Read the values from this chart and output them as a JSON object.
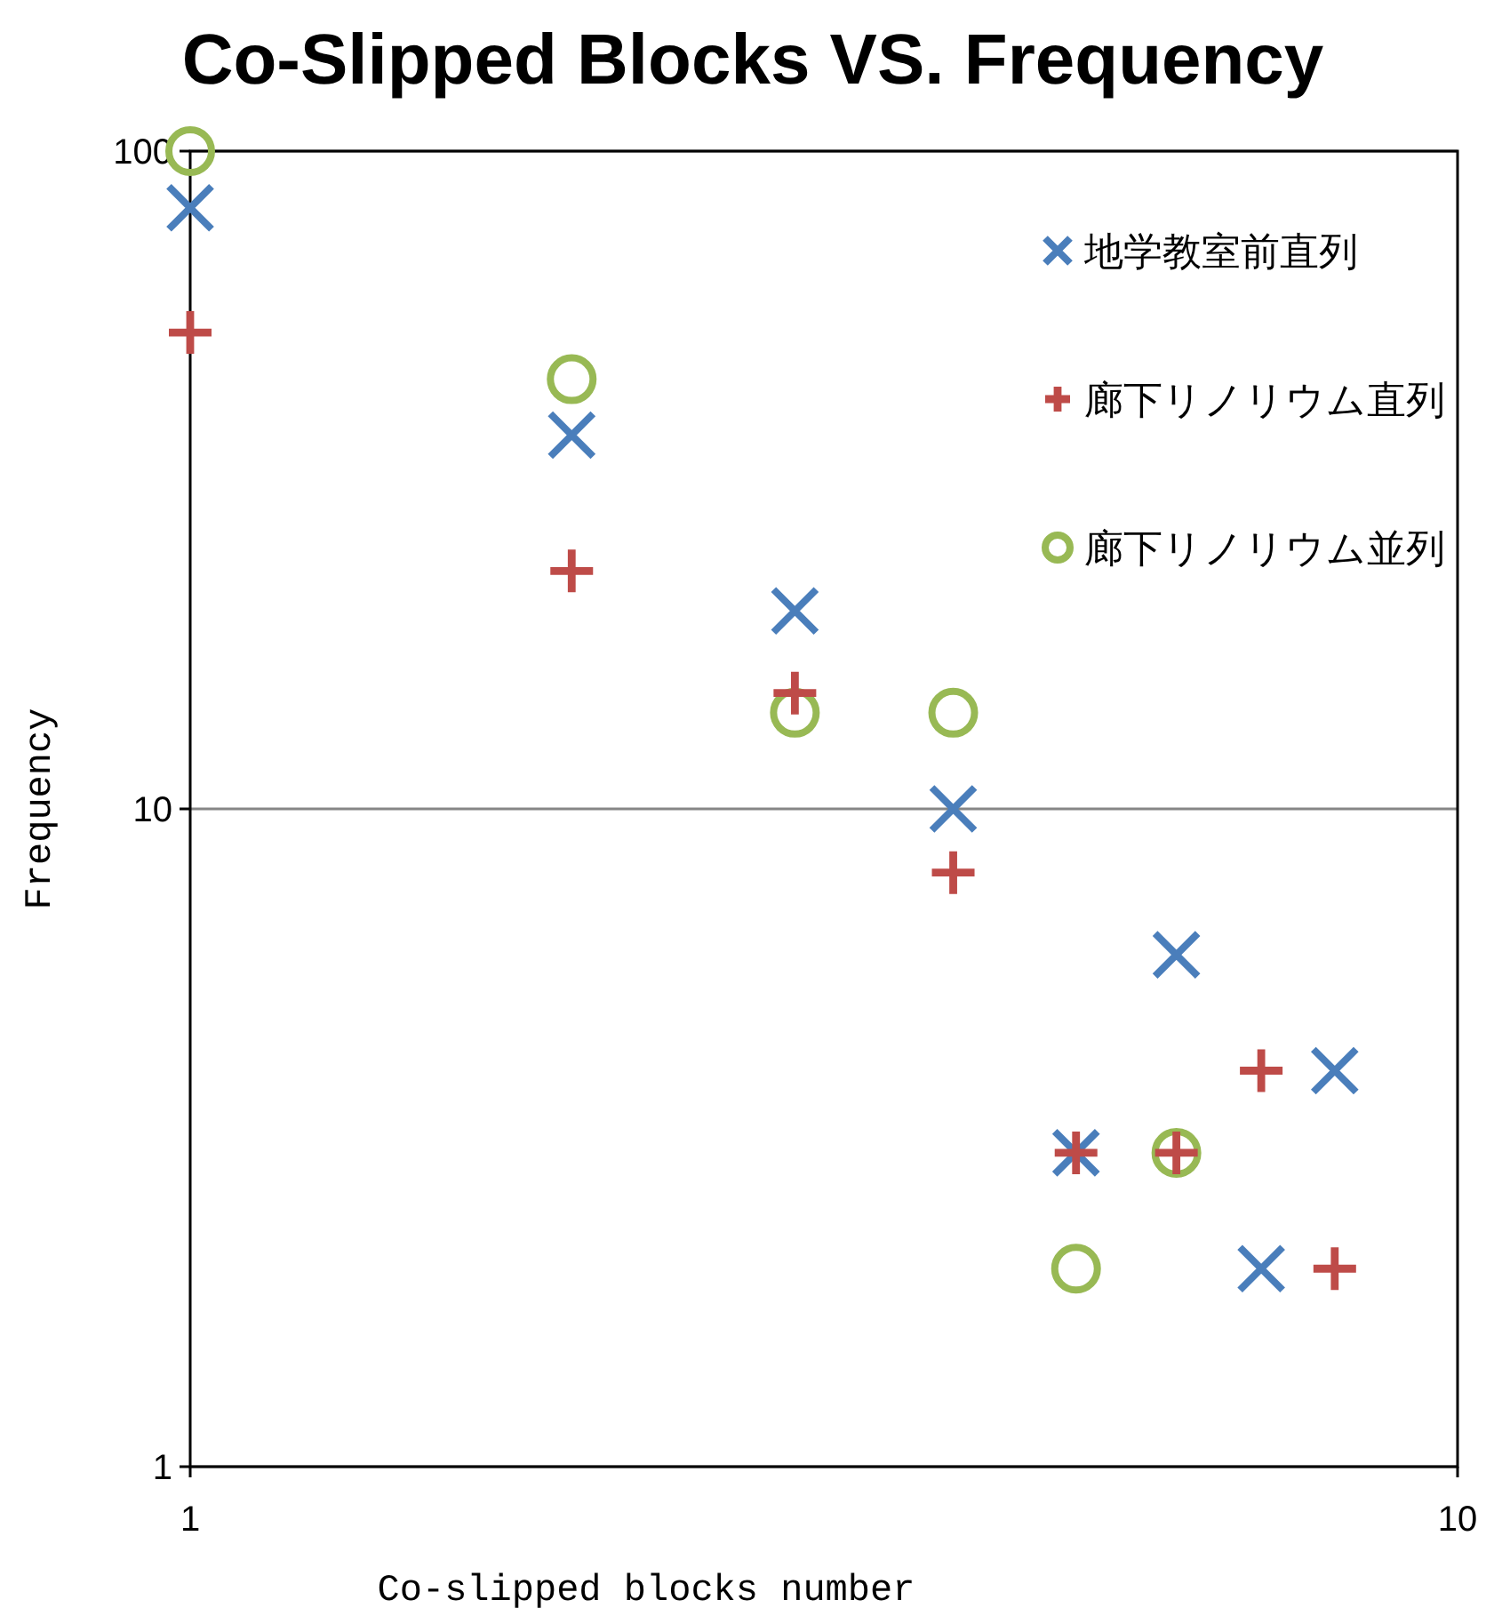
{
  "chart_data": {
    "type": "scatter",
    "title": "Co-Slipped Blocks VS. Frequency",
    "xlabel": "Co-slipped blocks number",
    "ylabel": "Frequency",
    "log": "xy",
    "xlim": [
      1,
      10
    ],
    "ylim": [
      1,
      100
    ],
    "xticks": [
      1,
      10
    ],
    "yticks": [
      1,
      10,
      100
    ],
    "grid": "y",
    "legend": "top right",
    "series": [
      {
        "name": "地学教室前直列",
        "color": "#4a7ebb",
        "marker": "x",
        "x": [
          1,
          2,
          3,
          4,
          5,
          6,
          7,
          8
        ],
        "values": [
          82,
          37,
          20,
          10,
          3,
          6,
          2,
          4
        ]
      },
      {
        "name": "廊下リノリウム直列",
        "color": "#be4b48",
        "marker": "cross",
        "x": [
          1,
          2,
          3,
          4,
          5,
          6,
          7,
          8
        ],
        "values": [
          53,
          23,
          15,
          8,
          3,
          3,
          4,
          2
        ]
      },
      {
        "name": "廊下リノリウム並列",
        "color": "#98b954",
        "marker": "circle",
        "x": [
          1,
          2,
          3,
          4,
          5,
          6
        ],
        "values": [
          100,
          45,
          14,
          14,
          2,
          3
        ]
      }
    ]
  }
}
